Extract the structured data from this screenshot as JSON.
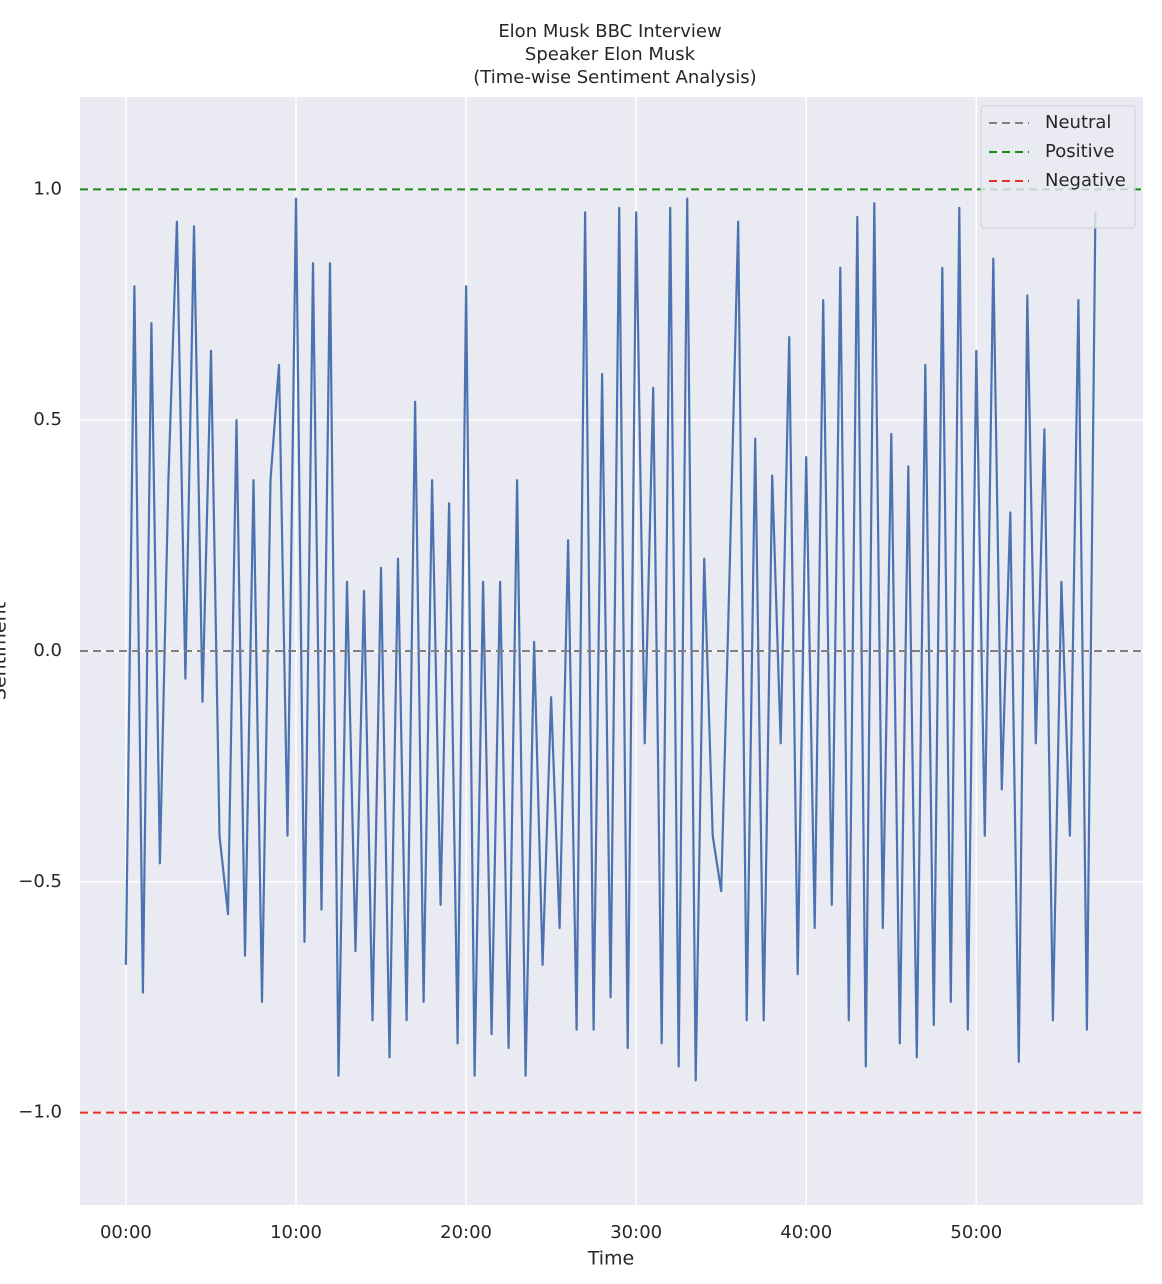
{
  "chart_data": {
    "type": "line",
    "title": "Elon Musk BBC Interview",
    "subtitle": [
      "Speaker Elon Musk",
      "(Time-wise Sentiment Analysis)"
    ],
    "x_label": "Time",
    "y_label": "Sentiment",
    "x": [
      0,
      0.5,
      1,
      1.5,
      2,
      2.5,
      3,
      3.5,
      4,
      4.5,
      5,
      5.5,
      6,
      6.5,
      7,
      7.5,
      8,
      8.5,
      9,
      9.5,
      10,
      10.5,
      11,
      11.5,
      12,
      12.5,
      13,
      13.5,
      14,
      14.5,
      15,
      15.5,
      16,
      16.5,
      17,
      17.5,
      18,
      18.5,
      19,
      19.5,
      20,
      20.5,
      21,
      21.5,
      22,
      22.5,
      23,
      23.5,
      24,
      24.5,
      25,
      25.5,
      26,
      26.5,
      27,
      27.5,
      28,
      28.5,
      29,
      29.5,
      30,
      30.5,
      31,
      31.5,
      32,
      32.5,
      33,
      33.5,
      34,
      34.5,
      35,
      35.5,
      36,
      36.5,
      37,
      37.5,
      38,
      38.5,
      39,
      39.5,
      40,
      40.5,
      41,
      41.5,
      42,
      42.5,
      43,
      43.5,
      44,
      44.5,
      45,
      45.5,
      46,
      46.5,
      47,
      47.5,
      48,
      48.5,
      49,
      49.5,
      50,
      50.5,
      51,
      51.5,
      52,
      52.5,
      53,
      53.5,
      54,
      54.5,
      55,
      55.5,
      56,
      56.5,
      57
    ],
    "series": [
      {
        "name": "Sentiment",
        "color": "#4c72b0",
        "values": [
          -0.68,
          0.79,
          -0.74,
          0.71,
          -0.46,
          0.37,
          0.93,
          -0.06,
          0.92,
          -0.11,
          0.65,
          -0.4,
          -0.57,
          0.5,
          -0.66,
          0.37,
          -0.76,
          0.37,
          0.62,
          -0.4,
          0.98,
          -0.63,
          0.84,
          -0.56,
          0.84,
          -0.92,
          0.15,
          -0.65,
          0.13,
          -0.8,
          0.18,
          -0.88,
          0.2,
          -0.8,
          0.54,
          -0.76,
          0.37,
          -0.55,
          0.32,
          -0.85,
          0.79,
          -0.92,
          0.15,
          -0.83,
          0.15,
          -0.86,
          0.37,
          -0.92,
          0.02,
          -0.68,
          -0.1,
          -0.6,
          0.24,
          -0.82,
          0.95,
          -0.82,
          0.6,
          -0.75,
          0.96,
          -0.86,
          0.95,
          -0.2,
          0.57,
          -0.85,
          0.96,
          -0.9,
          0.98,
          -0.93,
          0.2,
          -0.4,
          -0.52,
          0.18,
          0.93,
          -0.8,
          0.46,
          -0.8,
          0.38,
          -0.2,
          0.68,
          -0.7,
          0.42,
          -0.6,
          0.76,
          -0.55,
          0.83,
          -0.8,
          0.94,
          -0.9,
          0.97,
          -0.6,
          0.47,
          -0.85,
          0.4,
          -0.88,
          0.62,
          -0.81,
          0.83,
          -0.76,
          0.96,
          -0.82,
          0.65,
          -0.4,
          0.85,
          -0.3,
          0.3,
          -0.89,
          0.77,
          -0.2,
          0.48,
          -0.8,
          0.15,
          -0.4,
          0.76,
          -0.82,
          0.95
        ]
      }
    ],
    "reference_lines": [
      {
        "name": "Neutral",
        "value": 0,
        "color": "#808080"
      },
      {
        "name": "Positive",
        "value": 1,
        "color": "#1a8a1a"
      },
      {
        "name": "Negative",
        "value": -1,
        "color": "#e8302a"
      }
    ],
    "xlim": [
      -2.7,
      59.8
    ],
    "xticks": [
      {
        "value": 0,
        "label": "00:00"
      },
      {
        "value": 10,
        "label": "10:00"
      },
      {
        "value": 20,
        "label": "20:00"
      },
      {
        "value": 30,
        "label": "30:00"
      },
      {
        "value": 40,
        "label": "40:00"
      },
      {
        "value": 50,
        "label": "50:00"
      }
    ],
    "ylim": [
      -1.2,
      1.2
    ],
    "yticks": [
      {
        "value": -1,
        "label": "−1.0"
      },
      {
        "value": -0.5,
        "label": "−0.5"
      },
      {
        "value": 0,
        "label": "0.0"
      },
      {
        "value": 0.5,
        "label": "0.5"
      },
      {
        "value": 1,
        "label": "1.0"
      }
    ],
    "grid": true,
    "legend": "upper right"
  }
}
